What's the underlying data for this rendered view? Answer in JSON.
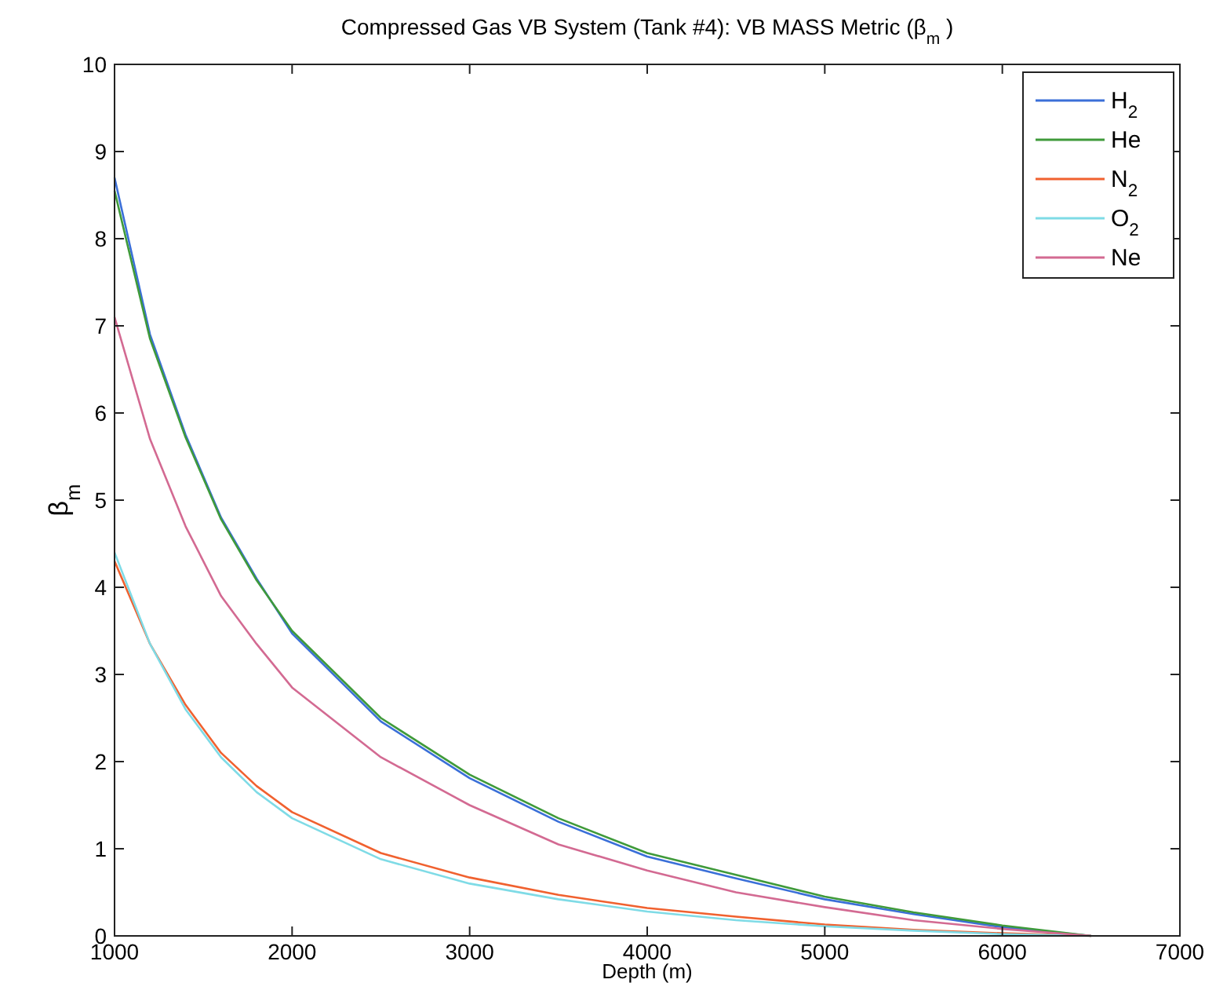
{
  "chart_data": {
    "type": "line",
    "title": "Compressed Gas VB System (Tank #4): VB MASS Metric (β$_{m}$ )",
    "xlabel": "Depth (m)",
    "ylabel": "β$_{m}$",
    "x": [
      1000,
      1200,
      1400,
      1600,
      1800,
      2000,
      2500,
      3000,
      3500,
      4000,
      4500,
      5000,
      5500,
      6000,
      6500
    ],
    "series": [
      {
        "name": "H$_{2}$",
        "color": "#3a6fd8",
        "values": [
          8.7,
          6.9,
          5.75,
          4.8,
          4.1,
          3.47,
          2.46,
          1.81,
          1.31,
          0.91,
          0.66,
          0.42,
          0.25,
          0.1,
          0
        ]
      },
      {
        "name": "He",
        "color": "#3f9a3a",
        "values": [
          8.55,
          6.85,
          5.72,
          4.78,
          4.08,
          3.5,
          2.5,
          1.85,
          1.35,
          0.95,
          0.7,
          0.45,
          0.27,
          0.12,
          0
        ]
      },
      {
        "name": "N$_{2}$",
        "color": "#f0612f",
        "values": [
          4.3,
          3.35,
          2.65,
          2.1,
          1.72,
          1.42,
          0.95,
          0.67,
          0.47,
          0.32,
          0.22,
          0.13,
          0.07,
          0.03,
          0
        ]
      },
      {
        "name": "O$_{2}$",
        "color": "#7fdbe6",
        "values": [
          4.4,
          3.35,
          2.6,
          2.05,
          1.65,
          1.35,
          0.88,
          0.6,
          0.42,
          0.28,
          0.18,
          0.11,
          0.06,
          0.02,
          0
        ]
      },
      {
        "name": "Ne",
        "color": "#d36a92",
        "values": [
          7.1,
          5.7,
          4.7,
          3.9,
          3.35,
          2.85,
          2.05,
          1.5,
          1.05,
          0.75,
          0.5,
          0.33,
          0.18,
          0.08,
          0
        ]
      }
    ],
    "xlim": [
      1000,
      7000
    ],
    "xticks": [
      1000,
      2000,
      3000,
      4000,
      5000,
      6000,
      7000
    ],
    "ylim": [
      0,
      10
    ],
    "yticks": [
      0,
      1,
      2,
      3,
      4,
      5,
      6,
      7,
      8,
      9,
      10
    ],
    "grid": false,
    "legend": "top right"
  }
}
